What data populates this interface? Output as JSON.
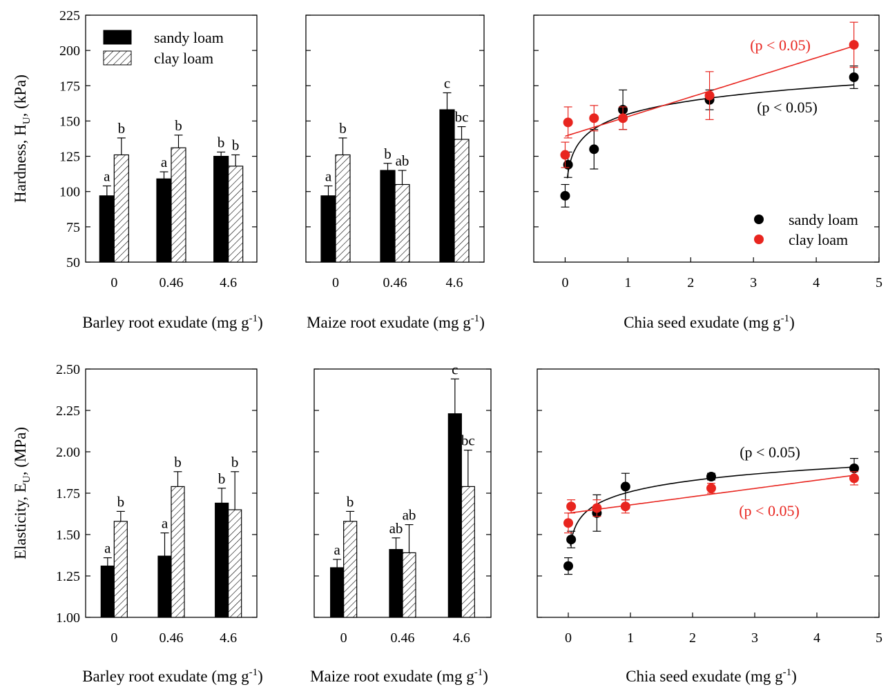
{
  "chart_data": [
    {
      "type": "bar",
      "xlabel": "Barley root exudate (mg g",
      "xlabel_sup": "-1",
      "xlabel_end": ")",
      "ylabel": "Hardness, H",
      "ylabel_sub": "U",
      "ylabel_end": ", (kPa)",
      "ylim": [
        50,
        225
      ],
      "yticks": [
        "50",
        "75",
        "100",
        "125",
        "150",
        "175",
        "200",
        "225"
      ],
      "categories": [
        "0",
        "0.46",
        "4.6"
      ],
      "legend": {
        "position": "top-left",
        "entries": [
          "sandy loam",
          "clay loam"
        ]
      },
      "series": [
        {
          "name": "sandy loam",
          "fill": "solid",
          "values": [
            97,
            109,
            125
          ],
          "errors": [
            7,
            5,
            3
          ],
          "letters": [
            "a",
            "a",
            "b"
          ]
        },
        {
          "name": "clay loam",
          "fill": "hatched",
          "values": [
            126,
            131,
            118
          ],
          "errors": [
            12,
            9,
            8
          ],
          "letters": [
            "b",
            "b",
            "b"
          ]
        }
      ]
    },
    {
      "type": "bar",
      "xlabel": "Maize root exudate (mg g",
      "xlabel_sup": "-1",
      "xlabel_end": ")",
      "ylim": [
        50,
        225
      ],
      "categories": [
        "0",
        "0.46",
        "4.6"
      ],
      "series": [
        {
          "name": "sandy loam",
          "fill": "solid",
          "values": [
            97,
            115,
            158
          ],
          "errors": [
            7,
            5,
            12
          ],
          "letters": [
            "a",
            "b",
            "c"
          ]
        },
        {
          "name": "clay loam",
          "fill": "hatched",
          "values": [
            126,
            105,
            137
          ],
          "errors": [
            12,
            10,
            9
          ],
          "letters": [
            "b",
            "ab",
            "bc"
          ]
        }
      ]
    },
    {
      "type": "scatter",
      "xlabel": "Chia seed exudate (mg g",
      "xlabel_sup": "-1",
      "xlabel_end": ")",
      "xlim": [
        -0.5,
        5
      ],
      "xticks": [
        "0",
        "1",
        "2",
        "3",
        "4",
        "5"
      ],
      "ylim": [
        50,
        225
      ],
      "legend": {
        "position": "bottom-right",
        "entries": [
          "sandy loam",
          "clay loam"
        ]
      },
      "colors": {
        "sandy loam": "#000000",
        "clay loam": "#e8251f"
      },
      "series": [
        {
          "name": "sandy loam",
          "color": "#000000",
          "points": [
            [
              0,
              97,
              8
            ],
            [
              0.046,
              119,
              9
            ],
            [
              0.46,
              130,
              14
            ],
            [
              0.92,
              158,
              14
            ],
            [
              2.3,
              165,
              7
            ],
            [
              4.6,
              181,
              8
            ]
          ],
          "fit": "log",
          "annotation": "(p < 0.05)"
        },
        {
          "name": "clay loam",
          "color": "#e8251f",
          "points": [
            [
              0,
              126,
              9
            ],
            [
              0.046,
              149,
              11
            ],
            [
              0.46,
              152,
              9
            ],
            [
              0.92,
              152,
              8
            ],
            [
              2.3,
              168,
              17
            ],
            [
              4.6,
              204,
              16
            ]
          ],
          "fit": "linear",
          "annotation": "(p < 0.05)"
        }
      ]
    },
    {
      "type": "bar",
      "xlabel": "Barley root exudate (mg g",
      "xlabel_sup": "-1",
      "xlabel_end": ")",
      "ylabel": "Elasticity, E",
      "ylabel_sub": "U",
      "ylabel_end": ", (MPa)",
      "ylim": [
        1.0,
        2.5
      ],
      "yticks": [
        "1.00",
        "1.25",
        "1.50",
        "1.75",
        "2.00",
        "2.25",
        "2.50"
      ],
      "categories": [
        "0",
        "0.46",
        "4.6"
      ],
      "series": [
        {
          "name": "sandy loam",
          "fill": "solid",
          "values": [
            1.31,
            1.37,
            1.69
          ],
          "errors": [
            0.05,
            0.14,
            0.09
          ],
          "letters": [
            "a",
            "a",
            "b"
          ]
        },
        {
          "name": "clay loam",
          "fill": "hatched",
          "values": [
            1.58,
            1.79,
            1.65
          ],
          "errors": [
            0.06,
            0.09,
            0.23
          ],
          "letters": [
            "b",
            "b",
            "b"
          ]
        }
      ]
    },
    {
      "type": "bar",
      "xlabel": "Maize root exudate (mg g",
      "xlabel_sup": "-1",
      "xlabel_end": ")",
      "ylim": [
        1.0,
        2.5
      ],
      "categories": [
        "0",
        "0.46",
        "4.6"
      ],
      "series": [
        {
          "name": "sandy loam",
          "fill": "solid",
          "values": [
            1.3,
            1.41,
            2.23
          ],
          "errors": [
            0.05,
            0.07,
            0.21
          ],
          "letters": [
            "a",
            "ab",
            "c"
          ]
        },
        {
          "name": "clay loam",
          "fill": "hatched",
          "values": [
            1.58,
            1.39,
            1.79
          ],
          "errors": [
            0.06,
            0.17,
            0.22
          ],
          "letters": [
            "b",
            "ab",
            "bc"
          ]
        }
      ]
    },
    {
      "type": "scatter",
      "xlabel": "Chia seed exudate (mg g",
      "xlabel_sup": "-1",
      "xlabel_end": ")",
      "xlim": [
        -0.5,
        5
      ],
      "xticks": [
        "0",
        "1",
        "2",
        "3",
        "4",
        "5"
      ],
      "ylim": [
        1.0,
        2.5
      ],
      "colors": {
        "sandy loam": "#000000",
        "clay loam": "#e8251f"
      },
      "series": [
        {
          "name": "sandy loam",
          "color": "#000000",
          "points": [
            [
              0,
              1.31,
              0.05
            ],
            [
              0.046,
              1.47,
              0.05
            ],
            [
              0.46,
              1.63,
              0.11
            ],
            [
              0.92,
              1.79,
              0.08
            ],
            [
              2.3,
              1.85,
              0.02
            ],
            [
              4.6,
              1.9,
              0.06
            ]
          ],
          "fit": "log",
          "annotation": "(p < 0.05)"
        },
        {
          "name": "clay loam",
          "color": "#e8251f",
          "points": [
            [
              0,
              1.57,
              0.06
            ],
            [
              0.046,
              1.67,
              0.04
            ],
            [
              0.46,
              1.66,
              0.05
            ],
            [
              0.92,
              1.67,
              0.04
            ],
            [
              2.3,
              1.78,
              0.03
            ],
            [
              4.6,
              1.84,
              0.04
            ]
          ],
          "fit": "linear",
          "annotation": "(p < 0.05)"
        }
      ]
    }
  ]
}
